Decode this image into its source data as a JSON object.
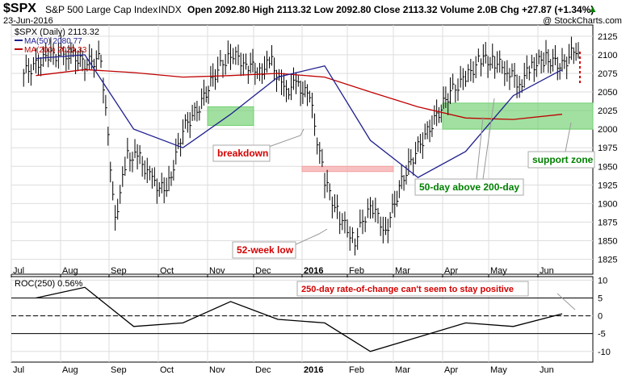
{
  "header": {
    "symbol": "$SPX",
    "name": "S&P 500 Large Cap Index",
    "exchange": "INDX",
    "date": "23-Jun-2016",
    "quote": "Open 2092.80  High 2113.32  Low 2092.80  Close 2113.32  Volume 2.0B  Chg +27.87 (+1.34%)",
    "arrow": "▲",
    "watermark": "@ StockCharts.com"
  },
  "legend": {
    "price": "$SPX (Daily) 2113.32",
    "ma50": "MA(50) 2080.77",
    "ma200": "MA(200) 2020.33"
  },
  "annotations": {
    "breakdown": "breakdown",
    "low52": "52-week low",
    "ma_cross": "50-day above 200-day",
    "support": "support zone",
    "roc_note": "250-day rate-of-change can't seem to stay positive"
  },
  "colors": {
    "price": "#000000",
    "ma50": "#1f1f8f",
    "ma200": "#c00000",
    "zone_green": "#6fcf6f",
    "zone_red": "#f4a0a0",
    "label_red": "#d40000",
    "label_green": "#008000"
  },
  "chart_data": [
    {
      "type": "line",
      "series": [
        {
          "name": "$SPX (Daily)",
          "style": "hlc-bars",
          "color": "#000000",
          "x": [
            "Jul",
            "Jul",
            "Aug",
            "Aug",
            "Aug",
            "Sep",
            "Sep",
            "Sep",
            "Sep",
            "Oct",
            "Oct",
            "Oct",
            "Nov",
            "Nov",
            "Nov",
            "Dec",
            "Dec",
            "Dec",
            "Dec",
            "2016",
            "2016",
            "2016",
            "Feb",
            "Feb",
            "Feb",
            "Mar",
            "Mar",
            "Mar",
            "Apr",
            "Apr",
            "Apr",
            "May",
            "May",
            "May",
            "May",
            "Jun",
            "Jun",
            "Jun"
          ],
          "values": [
            2075,
            2098,
            2103,
            2088,
            2095,
            1880,
            1965,
            1960,
            1930,
            1915,
            2000,
            2030,
            2075,
            2102,
            2088,
            2078,
            2090,
            2050,
            2060,
            2043,
            1930,
            1880,
            1850,
            1900,
            1862,
            1930,
            1975,
            2012,
            2050,
            2068,
            2095,
            2090,
            2080,
            2060,
            2085,
            2095,
            2085,
            2113
          ]
        },
        {
          "name": "MA(50)",
          "color": "#1f1f8f",
          "x": [
            "Jul",
            "Aug",
            "Sep",
            "Oct",
            "Nov",
            "Dec",
            "2016",
            "Feb",
            "Mar",
            "Apr",
            "May",
            "Jun"
          ],
          "values": [
            2095,
            2100,
            2000,
            1975,
            2020,
            2070,
            2085,
            1985,
            1935,
            1970,
            2045,
            2080
          ]
        },
        {
          "name": "MA(200)",
          "color": "#c00000",
          "x": [
            "Jul",
            "Aug",
            "Sep",
            "Oct",
            "Nov",
            "Dec",
            "2016",
            "Feb",
            "Mar",
            "Apr",
            "May",
            "Jun"
          ],
          "values": [
            2072,
            2080,
            2076,
            2070,
            2072,
            2075,
            2070,
            2050,
            2030,
            2015,
            2013,
            2020
          ]
        }
      ],
      "highlight_zones": [
        {
          "label": "breakdown-zone",
          "x_range": [
            "Nov",
            "Dec"
          ],
          "y_range": [
            2005,
            2030
          ],
          "color": "#6fcf6f"
        },
        {
          "label": "red-zone",
          "x_range": [
            "2016",
            "Mar"
          ],
          "y_range": [
            1943,
            1950
          ],
          "color": "#f4a0a0"
        },
        {
          "label": "support zone",
          "x_range": [
            "Apr",
            "Jun"
          ],
          "y_range": [
            2000,
            2035
          ],
          "color": "#6fcf6f"
        }
      ],
      "x_ticks": [
        "Jul",
        "Aug",
        "Sep",
        "Oct",
        "Nov",
        "Dec",
        "2016",
        "Feb",
        "Mar",
        "Apr",
        "May",
        "Jun"
      ],
      "y_ticks": [
        1825,
        1850,
        1875,
        1900,
        1925,
        1950,
        1975,
        2000,
        2025,
        2050,
        2075,
        2100,
        2125
      ],
      "ylim": [
        1805,
        2140
      ],
      "grid": true
    },
    {
      "type": "line",
      "series": [
        {
          "name": "ROC(250) 0.56%",
          "color": "#000000",
          "x": [
            "Jul",
            "Aug",
            "Sep",
            "Oct",
            "Nov",
            "Dec",
            "2016",
            "Feb",
            "Mar",
            "Apr",
            "May",
            "Jun"
          ],
          "values": [
            5,
            8,
            -3,
            -2,
            4,
            -1,
            -2,
            -10,
            -6,
            -2,
            -3,
            0.56
          ]
        }
      ],
      "reference_lines": [
        5,
        0,
        -5
      ],
      "y_ticks": [
        -10,
        -5,
        0,
        5,
        10
      ],
      "ylim": [
        -13,
        11
      ],
      "grid": true
    }
  ]
}
